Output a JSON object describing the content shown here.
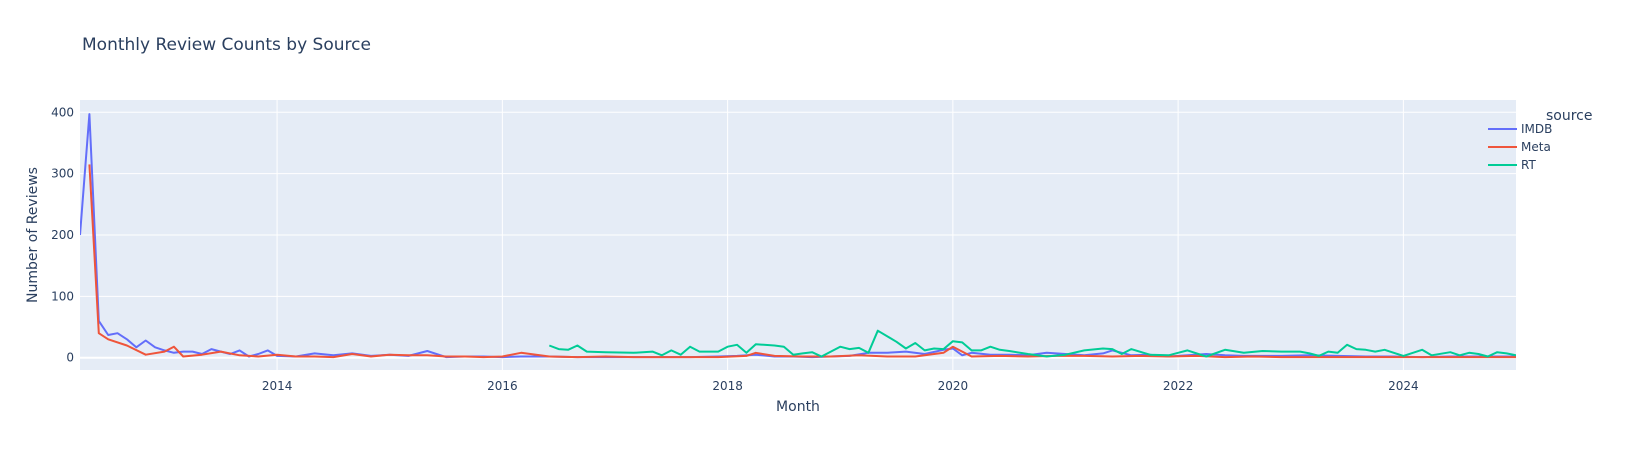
{
  "chart_data": {
    "type": "line",
    "title": "Monthly Review Counts by Source",
    "xlabel": "Month",
    "ylabel": "Number of Reviews",
    "x_range": [
      "2012-04",
      "2025-01"
    ],
    "ylim": [
      -20,
      420
    ],
    "x_ticks": [
      {
        "date": "2014-01",
        "label": "2014"
      },
      {
        "date": "2016-01",
        "label": "2016"
      },
      {
        "date": "2018-01",
        "label": "2018"
      },
      {
        "date": "2020-01",
        "label": "2020"
      },
      {
        "date": "2022-01",
        "label": "2022"
      },
      {
        "date": "2024-01",
        "label": "2024"
      }
    ],
    "y_ticks": [
      0,
      100,
      200,
      300,
      400
    ],
    "legend_title": "source",
    "legend_position": "right",
    "grid": true,
    "colors": {
      "plot_bg": "#e5ecf6",
      "grid": "#ffffff",
      "text": "#2a3f5f"
    },
    "series": [
      {
        "name": "IMDB",
        "color": "#636efa",
        "x": [
          "2012-04",
          "2012-05",
          "2012-06",
          "2012-07",
          "2012-08",
          "2012-09",
          "2012-10",
          "2012-11",
          "2012-12",
          "2013-01",
          "2013-02",
          "2013-03",
          "2013-04",
          "2013-05",
          "2013-06",
          "2013-07",
          "2013-08",
          "2013-09",
          "2013-10",
          "2013-11",
          "2013-12",
          "2014-01",
          "2014-03",
          "2014-05",
          "2014-07",
          "2014-09",
          "2014-11",
          "2015-01",
          "2015-03",
          "2015-05",
          "2015-07",
          "2015-09",
          "2015-11",
          "2016-01",
          "2016-03",
          "2016-06",
          "2016-09",
          "2016-12",
          "2017-03",
          "2017-06",
          "2017-09",
          "2017-12",
          "2018-02",
          "2018-04",
          "2018-06",
          "2018-08",
          "2018-10",
          "2018-12",
          "2019-02",
          "2019-04",
          "2019-06",
          "2019-08",
          "2019-10",
          "2019-12",
          "2020-01",
          "2020-02",
          "2020-03",
          "2020-05",
          "2020-07",
          "2020-09",
          "2020-11",
          "2021-01",
          "2021-03",
          "2021-05",
          "2021-06",
          "2021-08",
          "2021-10",
          "2021-12",
          "2022-02",
          "2022-04",
          "2022-06",
          "2022-08",
          "2022-10",
          "2022-12",
          "2023-03",
          "2023-06",
          "2023-09",
          "2023-12",
          "2024-03",
          "2024-06",
          "2024-09",
          "2024-12",
          "2025-01"
        ],
        "y": [
          200,
          397,
          60,
          37,
          40,
          30,
          17,
          28,
          17,
          12,
          8,
          10,
          10,
          6,
          14,
          10,
          6,
          12,
          2,
          6,
          12,
          3,
          2,
          7,
          4,
          7,
          3,
          5,
          3,
          11,
          1,
          2,
          2,
          1,
          2,
          2,
          1,
          1,
          1,
          1,
          1,
          2,
          3,
          5,
          2,
          2,
          1,
          2,
          3,
          8,
          8,
          10,
          6,
          13,
          15,
          4,
          8,
          5,
          5,
          4,
          8,
          6,
          4,
          7,
          12,
          4,
          5,
          2,
          4,
          6,
          4,
          3,
          3,
          3,
          4,
          3,
          2,
          2,
          1,
          2,
          2,
          2,
          2
        ]
      },
      {
        "name": "Meta",
        "color": "#ef553b",
        "x": [
          "2012-05",
          "2012-06",
          "2012-07",
          "2012-09",
          "2012-11",
          "2013-01",
          "2013-02",
          "2013-03",
          "2013-05",
          "2013-07",
          "2013-09",
          "2013-11",
          "2014-01",
          "2014-03",
          "2014-05",
          "2014-07",
          "2014-09",
          "2014-11",
          "2015-01",
          "2015-03",
          "2015-05",
          "2015-07",
          "2015-09",
          "2015-11",
          "2016-01",
          "2016-03",
          "2016-06",
          "2016-09",
          "2016-12",
          "2017-03",
          "2017-06",
          "2017-09",
          "2017-12",
          "2018-03",
          "2018-04",
          "2018-06",
          "2018-09",
          "2018-12",
          "2019-03",
          "2019-06",
          "2019-09",
          "2019-12",
          "2020-01",
          "2020-03",
          "2020-06",
          "2020-09",
          "2020-12",
          "2021-03",
          "2021-06",
          "2021-09",
          "2021-12",
          "2022-03",
          "2022-06",
          "2022-09",
          "2022-12",
          "2023-03",
          "2023-06",
          "2023-09",
          "2023-12",
          "2024-03",
          "2024-06",
          "2024-09",
          "2024-12",
          "2025-01"
        ],
        "y": [
          315,
          40,
          30,
          20,
          5,
          10,
          18,
          2,
          5,
          10,
          4,
          2,
          5,
          2,
          2,
          1,
          6,
          2,
          5,
          4,
          4,
          2,
          2,
          1,
          2,
          8,
          2,
          1,
          2,
          1,
          1,
          1,
          1,
          3,
          8,
          3,
          2,
          2,
          4,
          2,
          2,
          8,
          18,
          2,
          3,
          2,
          3,
          3,
          2,
          3,
          2,
          3,
          1,
          2,
          1,
          1,
          1,
          1,
          1,
          1,
          1,
          1,
          1,
          1
        ]
      },
      {
        "name": "RT",
        "color": "#00cc96",
        "x": [
          "2016-06",
          "2016-07",
          "2016-08",
          "2016-09",
          "2016-10",
          "2016-12",
          "2017-03",
          "2017-05",
          "2017-06",
          "2017-07",
          "2017-08",
          "2017-09",
          "2017-10",
          "2017-12",
          "2018-01",
          "2018-02",
          "2018-03",
          "2018-04",
          "2018-06",
          "2018-07",
          "2018-08",
          "2018-09",
          "2018-10",
          "2018-11",
          "2019-01",
          "2019-02",
          "2019-03",
          "2019-04",
          "2019-05",
          "2019-07",
          "2019-08",
          "2019-09",
          "2019-10",
          "2019-11",
          "2019-12",
          "2020-01",
          "2020-02",
          "2020-03",
          "2020-04",
          "2020-05",
          "2020-06",
          "2020-07",
          "2020-09",
          "2020-11",
          "2021-01",
          "2021-03",
          "2021-05",
          "2021-06",
          "2021-07",
          "2021-08",
          "2021-10",
          "2021-12",
          "2022-01",
          "2022-02",
          "2022-04",
          "2022-06",
          "2022-08",
          "2022-10",
          "2022-12",
          "2023-02",
          "2023-03",
          "2023-04",
          "2023-05",
          "2023-06",
          "2023-07",
          "2023-08",
          "2023-09",
          "2023-10",
          "2023-11",
          "2024-01",
          "2024-03",
          "2024-04",
          "2024-06",
          "2024-07",
          "2024-08",
          "2024-09",
          "2024-10",
          "2024-11",
          "2024-12",
          "2025-01"
        ],
        "y": [
          20,
          14,
          13,
          20,
          10,
          9,
          8,
          10,
          4,
          12,
          5,
          18,
          10,
          10,
          18,
          21,
          8,
          22,
          20,
          18,
          5,
          7,
          9,
          2,
          18,
          14,
          16,
          8,
          44,
          26,
          15,
          24,
          12,
          15,
          14,
          27,
          25,
          12,
          12,
          18,
          13,
          11,
          6,
          2,
          5,
          12,
          15,
          14,
          6,
          14,
          5,
          4,
          8,
          12,
          2,
          13,
          8,
          11,
          10,
          10,
          7,
          3,
          10,
          8,
          21,
          14,
          13,
          10,
          13,
          3,
          13,
          4,
          9,
          4,
          8,
          6,
          2,
          9,
          7,
          4
        ]
      }
    ]
  }
}
